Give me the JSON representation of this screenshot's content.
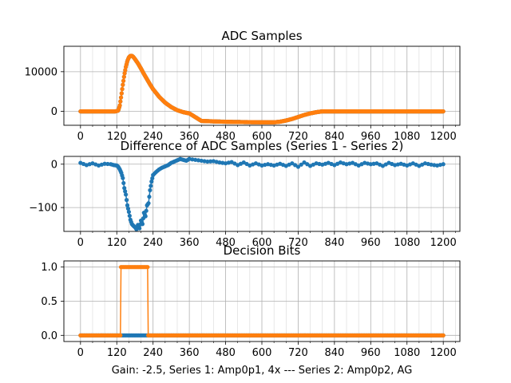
{
  "figure": {
    "xlabel": "Gain: -2.5, Series 1: Amp0p1, 4x --- Series 2: Amp0p2, AG"
  },
  "colors": {
    "series1": "#1f77b4",
    "series2": "#ff7f0e",
    "grid": "#b0b0b0",
    "axes": "#000000"
  },
  "chart_data": [
    {
      "type": "line",
      "title": "ADC Samples",
      "xlabel": "",
      "ylabel": "",
      "xlim": [
        -55,
        1255
      ],
      "ylim": [
        -3500,
        16400
      ],
      "xticks": [
        0,
        120,
        240,
        360,
        480,
        600,
        720,
        840,
        960,
        1080,
        1200
      ],
      "xtick_labels": [
        "0",
        "120",
        "240",
        "360",
        "480",
        "600",
        "720",
        "840",
        "960",
        "1080",
        "1200"
      ],
      "yticks": [
        0,
        10000
      ],
      "ytick_labels": [
        "0",
        "10000"
      ],
      "grid": true,
      "series": [
        {
          "name": "Series 1",
          "color": "#1f77b4",
          "marker": "dot",
          "x": [
            0,
            100,
            115,
            125,
            130,
            135,
            140,
            145,
            150,
            155,
            160,
            165,
            170,
            175,
            180,
            190,
            200,
            210,
            220,
            230,
            240,
            260,
            280,
            300,
            320,
            340,
            360,
            400,
            450,
            500,
            550,
            600,
            640,
            660,
            680,
            700,
            720,
            740,
            760,
            780,
            800,
            820,
            840,
            900,
            1000,
            1100,
            1200
          ],
          "y": [
            0,
            0,
            0,
            200,
            1500,
            4000,
            6700,
            9200,
            11200,
            12700,
            13600,
            14000,
            14000,
            13700,
            13200,
            12100,
            10800,
            9400,
            8100,
            6800,
            5600,
            3700,
            2200,
            1100,
            300,
            -200,
            -500,
            -2400,
            -2550,
            -2650,
            -2700,
            -2750,
            -2750,
            -2600,
            -2300,
            -1900,
            -1400,
            -900,
            -500,
            -200,
            0,
            0,
            0,
            0,
            0,
            0,
            0
          ]
        },
        {
          "name": "Series 2",
          "color": "#ff7f0e",
          "marker": "dot",
          "x": [
            0,
            100,
            115,
            125,
            130,
            135,
            140,
            145,
            150,
            155,
            160,
            165,
            170,
            175,
            180,
            190,
            200,
            210,
            220,
            230,
            240,
            260,
            280,
            300,
            320,
            340,
            360,
            400,
            450,
            500,
            550,
            600,
            640,
            660,
            680,
            700,
            720,
            740,
            760,
            780,
            800,
            820,
            840,
            900,
            1000,
            1100,
            1200
          ],
          "y": [
            0,
            0,
            0,
            200,
            1500,
            4000,
            6700,
            9200,
            11200,
            12700,
            13600,
            14000,
            14000,
            13700,
            13200,
            12100,
            10800,
            9400,
            8100,
            6800,
            5600,
            3700,
            2200,
            1100,
            300,
            -200,
            -500,
            -2400,
            -2550,
            -2650,
            -2700,
            -2750,
            -2750,
            -2600,
            -2300,
            -1900,
            -1400,
            -900,
            -500,
            -200,
            0,
            0,
            0,
            0,
            0,
            0,
            0
          ]
        }
      ]
    },
    {
      "type": "line",
      "title": "Difference of ADC Samples (Series 1 - Series 2)",
      "xlabel": "",
      "ylabel": "",
      "xlim": [
        -55,
        1255
      ],
      "ylim": [
        -155,
        18
      ],
      "xticks": [
        0,
        120,
        240,
        360,
        480,
        600,
        720,
        840,
        960,
        1080,
        1200
      ],
      "xtick_labels": [
        "0",
        "120",
        "240",
        "360",
        "480",
        "600",
        "720",
        "840",
        "960",
        "1080",
        "1200"
      ],
      "yticks": [
        0,
        -100
      ],
      "ytick_labels": [
        "0",
        "−100"
      ],
      "grid": true,
      "series": [
        {
          "name": "Series 1 - Series 2",
          "color": "#1f77b4",
          "marker": "dot",
          "x": [
            0,
            20,
            40,
            60,
            80,
            100,
            110,
            120,
            125,
            130,
            135,
            140,
            145,
            150,
            155,
            160,
            165,
            170,
            175,
            180,
            185,
            190,
            195,
            200,
            205,
            210,
            215,
            220,
            225,
            230,
            235,
            240,
            250,
            260,
            270,
            280,
            290,
            300,
            310,
            320,
            330,
            340,
            350,
            360,
            380,
            400,
            420,
            440,
            460,
            480,
            500,
            520,
            540,
            560,
            580,
            600,
            620,
            640,
            660,
            680,
            700,
            720,
            740,
            760,
            780,
            800,
            820,
            840,
            860,
            880,
            900,
            920,
            940,
            960,
            980,
            1000,
            1020,
            1040,
            1060,
            1080,
            1100,
            1120,
            1140,
            1160,
            1180,
            1200
          ],
          "y": [
            3,
            -2,
            2,
            -3,
            1,
            0,
            -2,
            -3,
            -6,
            -12,
            -20,
            -32,
            -55,
            -70,
            -95,
            -110,
            -128,
            -138,
            -142,
            -145,
            -150,
            -140,
            -148,
            -130,
            -138,
            -112,
            -120,
            -95,
            -90,
            -60,
            -40,
            -25,
            -18,
            -12,
            -8,
            -5,
            -2,
            3,
            6,
            9,
            12,
            10,
            8,
            12,
            10,
            8,
            6,
            7,
            4,
            2,
            5,
            -2,
            4,
            -3,
            2,
            -3,
            0,
            -3,
            1,
            -4,
            2,
            -6,
            4,
            -4,
            2,
            -1,
            3,
            -2,
            4,
            0,
            3,
            -3,
            3,
            0,
            2,
            -4,
            3,
            -2,
            1,
            -3,
            2,
            -4,
            2,
            -1,
            -3,
            0
          ]
        }
      ]
    },
    {
      "type": "line",
      "title": "Decision Bits",
      "xlabel": "",
      "ylabel": "",
      "xlim": [
        -55,
        1255
      ],
      "ylim": [
        -0.09,
        1.09
      ],
      "xticks": [
        0,
        120,
        240,
        360,
        480,
        600,
        720,
        840,
        960,
        1080,
        1200
      ],
      "xtick_labels": [
        "0",
        "120",
        "240",
        "360",
        "480",
        "600",
        "720",
        "840",
        "960",
        "1080",
        "1200"
      ],
      "yticks": [
        0,
        0.5,
        1
      ],
      "ytick_labels": [
        "0.0",
        "0.5",
        "1.0"
      ],
      "grid": true,
      "series": [
        {
          "name": "Series 1",
          "color": "#1f77b4",
          "marker": "dot",
          "x": [
            0,
            1200
          ],
          "y": [
            0,
            0
          ]
        },
        {
          "name": "Series 2",
          "color": "#ff7f0e",
          "marker": "dot",
          "x": [
            0,
            132,
            134,
            222,
            224,
            1200
          ],
          "y": [
            0,
            0,
            1,
            1,
            0,
            0
          ],
          "dense_segments": [
            [
              0,
              132
            ],
            [
              224,
              1200
            ]
          ],
          "high_segment": [
            134,
            222
          ]
        }
      ]
    }
  ]
}
